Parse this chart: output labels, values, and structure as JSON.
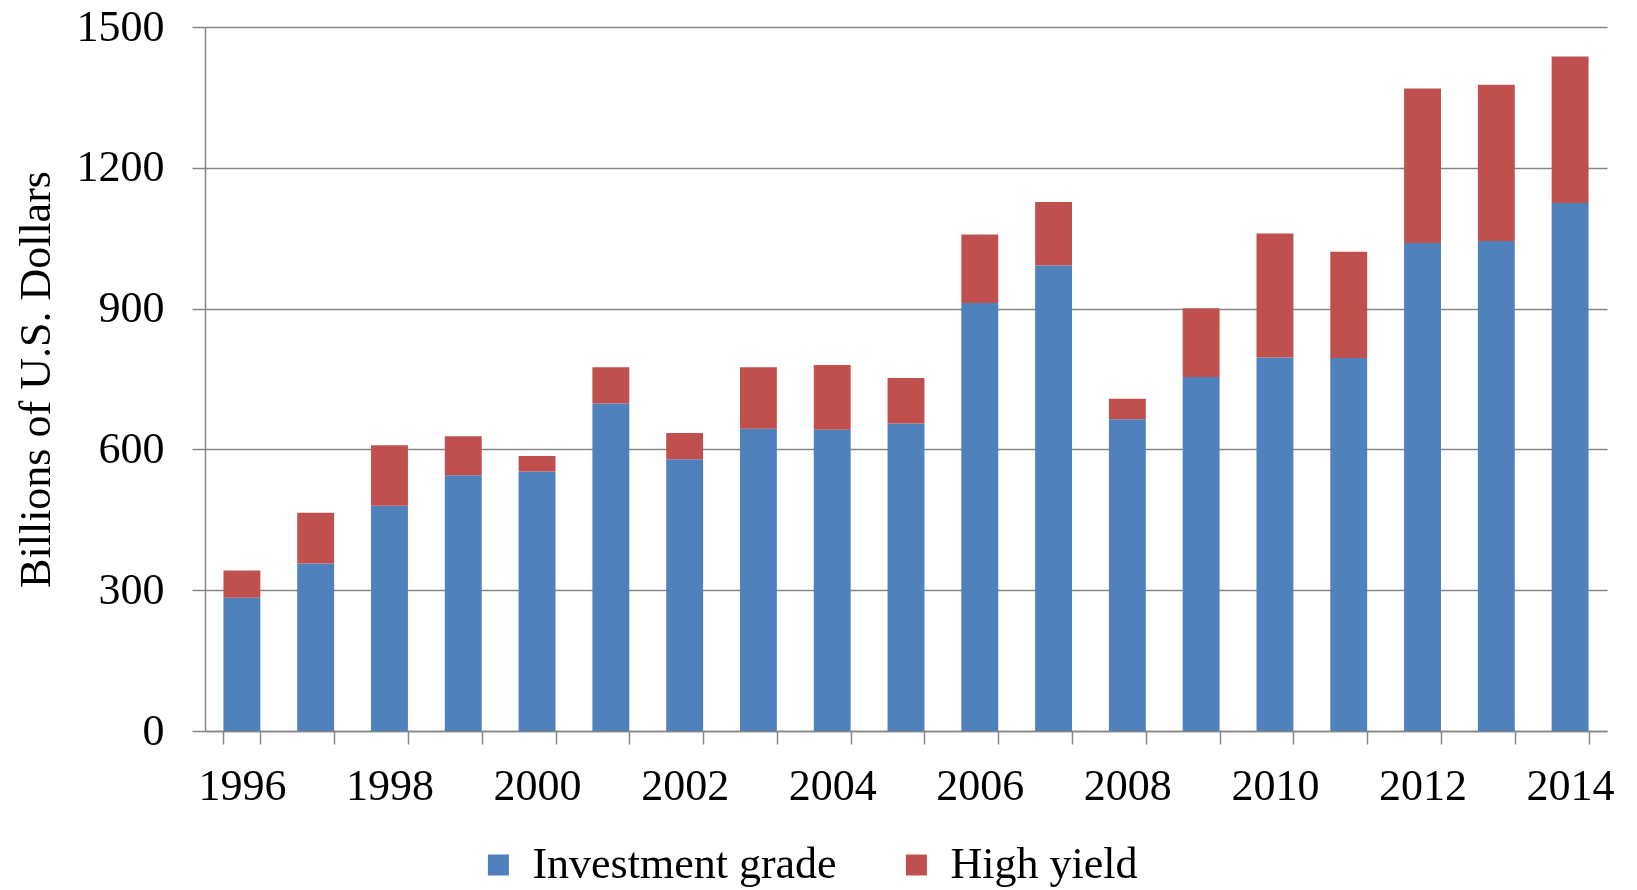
{
  "chart_data": {
    "type": "bar",
    "stacked": true,
    "categories": [
      "1996",
      null,
      "1998",
      null,
      "2000",
      null,
      "2002",
      null,
      "2004",
      null,
      "2006",
      null,
      "2008",
      null,
      "2010",
      null,
      "2012",
      null,
      "2014"
    ],
    "series": [
      {
        "name": "Investment grade",
        "color": "#4f81bd",
        "values": [
          284,
          357,
          480,
          545,
          553,
          698,
          579,
          644,
          642,
          655,
          912,
          992,
          664,
          754,
          796,
          795,
          1040,
          1044,
          1125
        ]
      },
      {
        "name": "High yield",
        "color": "#c0504d",
        "values": [
          58,
          108,
          129,
          83,
          33,
          77,
          56,
          131,
          138,
          97,
          146,
          135,
          44,
          147,
          264,
          226,
          329,
          333,
          312
        ]
      }
    ],
    "ylabel": "Billions of U.S. Dollars",
    "ylim": [
      0,
      1500
    ],
    "yticks": [
      0,
      300,
      600,
      900,
      1200,
      1500
    ],
    "grid": "y",
    "legend": "bottom"
  }
}
